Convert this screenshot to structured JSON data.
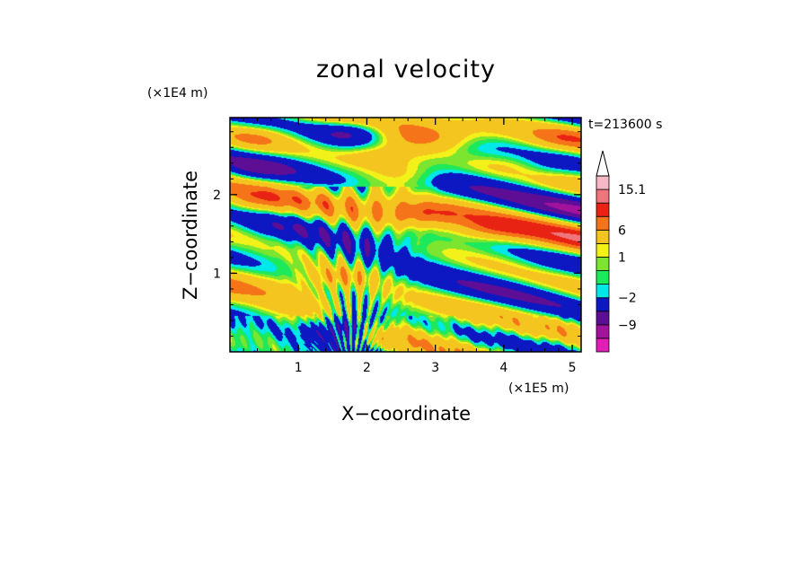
{
  "chart_data": {
    "type": "heatmap",
    "title": "zonal velocity",
    "xlabel": "X−coordinate",
    "ylabel": "Z−coordinate",
    "x_unit": "(×1E5 m)",
    "y_unit": "(×1E4 m)",
    "time_label": "t=213600 s",
    "xlim": [
      0,
      5.13
    ],
    "ylim": [
      0,
      2.98
    ],
    "xticks": [
      1,
      2,
      3,
      4,
      5
    ],
    "yticks": [
      1,
      2
    ],
    "colorbar": {
      "levels": [
        -15.1,
        -12,
        -9,
        -6,
        -2,
        -1,
        0,
        1,
        2,
        6,
        9,
        12,
        15.1
      ],
      "labels": [
        "15.1",
        "6",
        "1",
        "−2",
        "−9"
      ],
      "label_values": [
        15.1,
        6,
        1,
        -2,
        -9
      ],
      "extend": "max",
      "colors": [
        "#e21cb6",
        "#a3129d",
        "#5e0e95",
        "#0d17c2",
        "#00e8e8",
        "#1de95d",
        "#7be530",
        "#f2f21a",
        "#f4c51e",
        "#f5741a",
        "#e92314",
        "#ef767c",
        "#f5b8c4"
      ],
      "extend_color": "#ffffff"
    },
    "field": {
      "background_value": 0.5,
      "features": [
        {
          "x": 0.35,
          "z": 2.73,
          "v": 4
        },
        {
          "x": 2.75,
          "z": 2.72,
          "v": 3.5
        },
        {
          "x": 4.9,
          "z": 2.72,
          "v": 4
        },
        {
          "x": 1.85,
          "z": 2.75,
          "v": -3
        },
        {
          "x": 2.2,
          "z": 2.5,
          "v": 5
        },
        {
          "x": 2.55,
          "z": 2.28,
          "v": 4
        },
        {
          "x": 0.3,
          "z": 1.9,
          "v": 4
        },
        {
          "x": 2.85,
          "z": 1.75,
          "v": 4
        },
        {
          "x": 1.55,
          "z": 0.95,
          "v": 4
        },
        {
          "x": 3.8,
          "z": 1.55,
          "v": 3.5
        },
        {
          "x": 0.3,
          "z": 2.3,
          "v": -3
        },
        {
          "x": 4.55,
          "z": 2.3,
          "v": -3
        },
        {
          "x": 3.6,
          "z": 2.55,
          "v": -2.5
        },
        {
          "x": 1.62,
          "z": 0.4,
          "v": -4
        },
        {
          "x": 1.72,
          "z": 0.28,
          "v": -7
        },
        {
          "x": 1.8,
          "z": 2.85,
          "v": -4
        },
        {
          "x": 0.6,
          "z": 1.55,
          "v": -1
        },
        {
          "x": 2.75,
          "z": 1.5,
          "v": -1
        },
        {
          "x": 4.6,
          "z": 1.1,
          "v": -1
        },
        {
          "x": 0.3,
          "z": 0.6,
          "v": -1
        },
        {
          "x": 4.2,
          "z": 0.4,
          "v": -1
        },
        {
          "x": 3.4,
          "z": 2.05,
          "v": -1
        },
        {
          "x": 0.9,
          "z": 2.45,
          "v": -1
        }
      ]
    }
  }
}
